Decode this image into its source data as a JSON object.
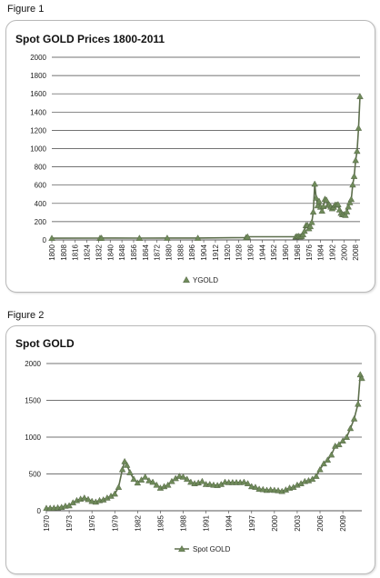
{
  "figures": [
    {
      "label": "Figure 1",
      "chart_data": {
        "type": "line",
        "title": "Spot GOLD Prices 1800-2011",
        "xlabel": "",
        "ylabel": "",
        "ylim": [
          0,
          2000
        ],
        "yticks": [
          0,
          200,
          400,
          600,
          800,
          1000,
          1200,
          1400,
          1600,
          1800,
          2000
        ],
        "xlim": [
          1800,
          2011
        ],
        "xticks": [
          1800,
          1808,
          1816,
          1824,
          1832,
          1840,
          1848,
          1856,
          1864,
          1872,
          1880,
          1888,
          1896,
          1904,
          1912,
          1920,
          1928,
          1936,
          1944,
          1952,
          1960,
          1968,
          1976,
          1984,
          1992,
          2000,
          2008
        ],
        "grid": true,
        "legend": "bottom",
        "series": [
          {
            "name": "YGOLD",
            "marker": "triangle",
            "color": "#6f8a5a",
            "points": [
              [
                1800,
                19
              ],
              [
                1833,
                20
              ],
              [
                1834,
                21
              ],
              [
                1860,
                20
              ],
              [
                1879,
                21
              ],
              [
                1900,
                21
              ],
              [
                1933,
                26
              ],
              [
                1934,
                35
              ],
              [
                1967,
                35
              ],
              [
                1968,
                39
              ],
              [
                1969,
                41
              ],
              [
                1970,
                36
              ],
              [
                1971,
                41
              ],
              [
                1972,
                59
              ],
              [
                1973,
                97
              ],
              [
                1974,
                159
              ],
              [
                1975,
                161
              ],
              [
                1976,
                125
              ],
              [
                1977,
                148
              ],
              [
                1978,
                193
              ],
              [
                1979,
                307
              ],
              [
                1980,
                613
              ],
              [
                1981,
                460
              ],
              [
                1982,
                376
              ],
              [
                1983,
                424
              ],
              [
                1984,
                361
              ],
              [
                1985,
                317
              ],
              [
                1986,
                368
              ],
              [
                1987,
                447
              ],
              [
                1988,
                437
              ],
              [
                1989,
                381
              ],
              [
                1990,
                384
              ],
              [
                1991,
                362
              ],
              [
                1992,
                344
              ],
              [
                1993,
                360
              ],
              [
                1994,
                384
              ],
              [
                1995,
                384
              ],
              [
                1996,
                388
              ],
              [
                1997,
                331
              ],
              [
                1998,
                294
              ],
              [
                1999,
                279
              ],
              [
                2000,
                279
              ],
              [
                2001,
                271
              ],
              [
                2002,
                310
              ],
              [
                2003,
                363
              ],
              [
                2004,
                410
              ],
              [
                2005,
                445
              ],
              [
                2006,
                604
              ],
              [
                2007,
                697
              ],
              [
                2008,
                872
              ],
              [
                2009,
                972
              ],
              [
                2010,
                1225
              ],
              [
                2011,
                1571
              ]
            ]
          }
        ]
      }
    },
    {
      "label": "Figure 2",
      "chart_data": {
        "type": "line",
        "title": "Spot GOLD",
        "xlabel": "",
        "ylabel": "",
        "ylim": [
          0,
          2000
        ],
        "yticks": [
          0,
          500,
          1000,
          1500,
          2000
        ],
        "xlim": [
          1970,
          2011.5
        ],
        "xticks": [
          1970,
          1973,
          1976,
          1979,
          1982,
          1985,
          1988,
          1991,
          1994,
          1997,
          2000,
          2003,
          2006,
          2009
        ],
        "grid": true,
        "legend": "bottom",
        "series": [
          {
            "name": "Spot GOLD",
            "marker": "triangle",
            "color": "#6f8a5a",
            "points": [
              [
                1970,
                35
              ],
              [
                1970.5,
                36
              ],
              [
                1971,
                38
              ],
              [
                1971.5,
                42
              ],
              [
                1972,
                48
              ],
              [
                1972.5,
                65
              ],
              [
                1973,
                70
              ],
              [
                1973.5,
                110
              ],
              [
                1974,
                140
              ],
              [
                1974.5,
                160
              ],
              [
                1975,
                175
              ],
              [
                1975.5,
                155
              ],
              [
                1976,
                130
              ],
              [
                1976.5,
                120
              ],
              [
                1977,
                140
              ],
              [
                1977.5,
                150
              ],
              [
                1978,
                175
              ],
              [
                1978.5,
                200
              ],
              [
                1979,
                230
              ],
              [
                1979.5,
                320
              ],
              [
                1980,
                560
              ],
              [
                1980.3,
                670
              ],
              [
                1980.6,
                620
              ],
              [
                1981,
                520
              ],
              [
                1981.5,
                430
              ],
              [
                1982,
                380
              ],
              [
                1982.5,
                420
              ],
              [
                1983,
                460
              ],
              [
                1983.5,
                410
              ],
              [
                1984,
                390
              ],
              [
                1984.5,
                350
              ],
              [
                1985,
                310
              ],
              [
                1985.5,
                330
              ],
              [
                1986,
                350
              ],
              [
                1986.5,
                400
              ],
              [
                1987,
                440
              ],
              [
                1987.5,
                470
              ],
              [
                1988,
                460
              ],
              [
                1988.5,
                430
              ],
              [
                1989,
                390
              ],
              [
                1989.5,
                370
              ],
              [
                1990,
                380
              ],
              [
                1990.5,
                400
              ],
              [
                1991,
                360
              ],
              [
                1991.5,
                360
              ],
              [
                1992,
                350
              ],
              [
                1992.5,
                345
              ],
              [
                1993,
                360
              ],
              [
                1993.5,
                390
              ],
              [
                1994,
                385
              ],
              [
                1994.5,
                385
              ],
              [
                1995,
                385
              ],
              [
                1995.5,
                385
              ],
              [
                1996,
                390
              ],
              [
                1996.5,
                370
              ],
              [
                1997,
                330
              ],
              [
                1997.5,
                320
              ],
              [
                1998,
                295
              ],
              [
                1998.5,
                290
              ],
              [
                1999,
                280
              ],
              [
                1999.5,
                285
              ],
              [
                2000,
                280
              ],
              [
                2000.5,
                275
              ],
              [
                2001,
                265
              ],
              [
                2001.5,
                285
              ],
              [
                2002,
                310
              ],
              [
                2002.5,
                320
              ],
              [
                2003,
                350
              ],
              [
                2003.5,
                370
              ],
              [
                2004,
                400
              ],
              [
                2004.5,
                410
              ],
              [
                2005,
                430
              ],
              [
                2005.5,
                470
              ],
              [
                2006,
                560
              ],
              [
                2006.5,
                640
              ],
              [
                2007,
                690
              ],
              [
                2007.5,
                760
              ],
              [
                2008,
                880
              ],
              [
                2008.5,
                900
              ],
              [
                2009,
                950
              ],
              [
                2009.5,
                1000
              ],
              [
                2010,
                1120
              ],
              [
                2010.5,
                1250
              ],
              [
                2011,
                1450
              ],
              [
                2011.3,
                1850
              ],
              [
                2011.5,
                1800
              ]
            ]
          }
        ]
      }
    }
  ]
}
